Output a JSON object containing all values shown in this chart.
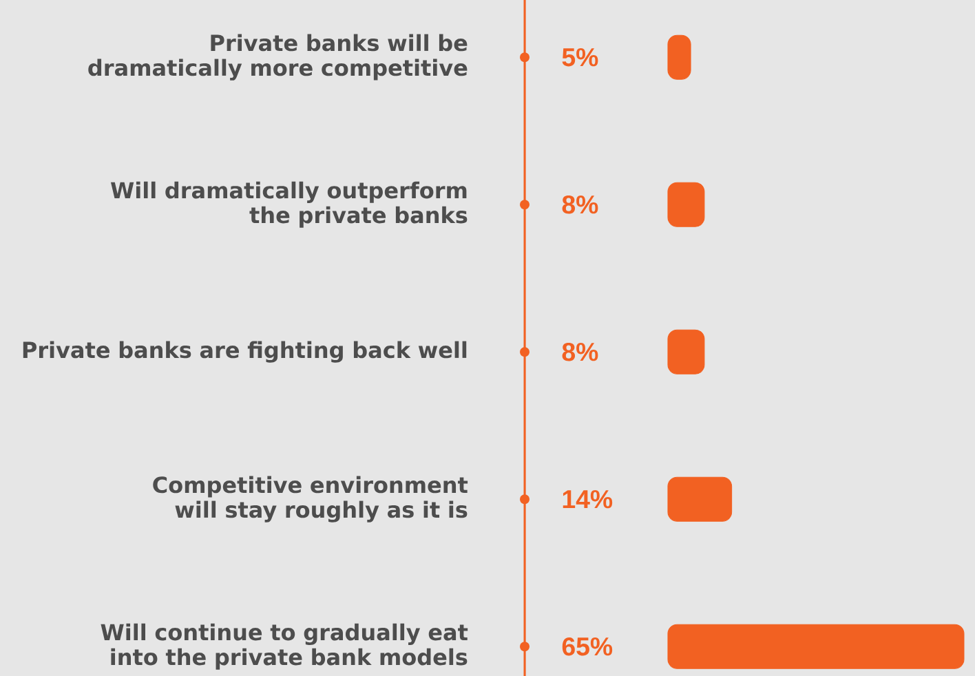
{
  "chart_data": {
    "type": "bar",
    "orientation": "horizontal",
    "categories": [
      "Private banks will be dramatically more competitive",
      "Will dramatically outperform the private banks",
      "Private banks are fighting back well",
      "Competitive environment will stay roughly as it is",
      "Will continue to gradually eat into the private bank models"
    ],
    "values": [
      5,
      8,
      8,
      14,
      65
    ],
    "value_labels": [
      "5%",
      "8%",
      "8%",
      "14%",
      "65%"
    ],
    "color": "#f26122",
    "xlim": [
      0,
      65
    ],
    "tick_labels": "y"
  }
}
